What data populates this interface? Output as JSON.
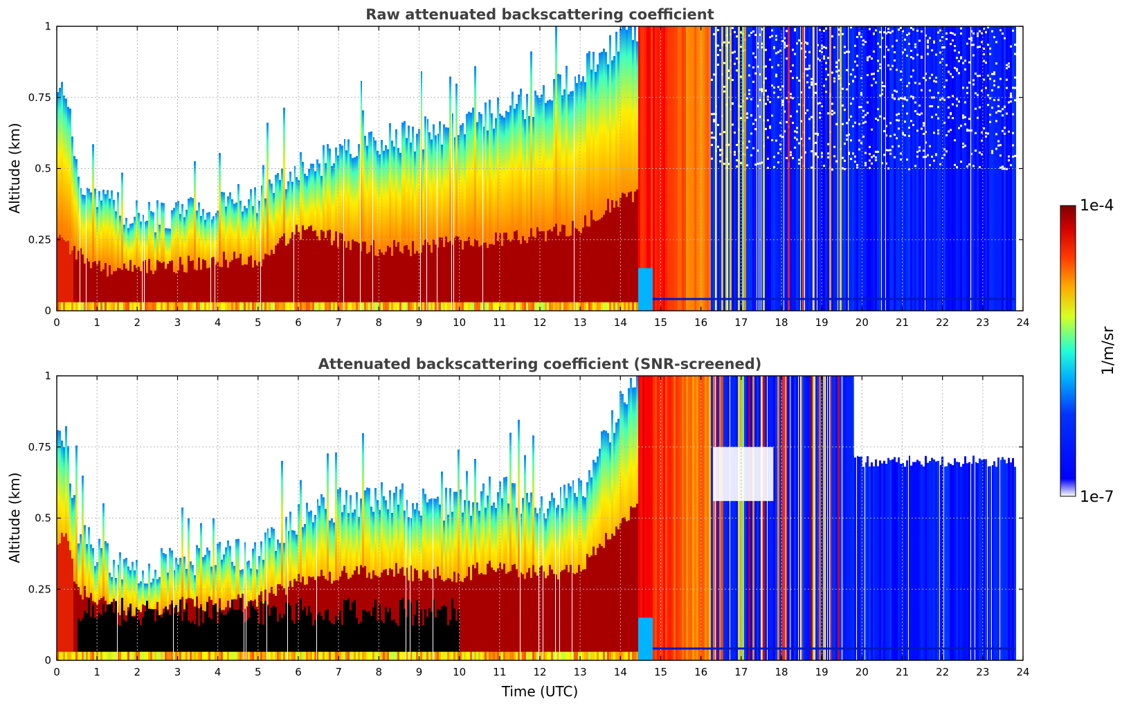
{
  "colors": {
    "title": "#404040",
    "jet_dark_red": "#7f0000",
    "jet_blue": "#0032ff",
    "black_saturation": "#000000"
  },
  "colorbar": {
    "label": "1/m/sr",
    "max_label": "1e-4",
    "min_label": "1e-7",
    "range": [
      1e-07,
      0.0001
    ],
    "colormap": "jet"
  },
  "chart_data": [
    {
      "id": "raw",
      "type": "heatmap",
      "title": "Raw attenuated backscattering coefficient",
      "xlabel": "",
      "ylabel": "Altitude (km)",
      "xlim": [
        0,
        24
      ],
      "ylim": [
        0,
        1
      ],
      "x_ticks": [
        "0",
        "1",
        "2",
        "3",
        "4",
        "5",
        "6",
        "7",
        "8",
        "9",
        "10",
        "11",
        "12",
        "13",
        "14",
        "15",
        "16",
        "17",
        "18",
        "19",
        "20",
        "21",
        "22",
        "23",
        "24"
      ],
      "y_ticks": [
        "0",
        "0.25",
        "0.5",
        "0.75",
        "1"
      ],
      "grid": true,
      "description_series": [
        {
          "name": "boundary_layer_top_km",
          "x": [
            0,
            0.2,
            0.5,
            1,
            2,
            3,
            4,
            5,
            6,
            7,
            8,
            9,
            10,
            11,
            12,
            13,
            14,
            14.4
          ],
          "values": [
            0.75,
            0.8,
            0.45,
            0.4,
            0.32,
            0.35,
            0.38,
            0.4,
            0.5,
            0.55,
            0.6,
            0.62,
            0.65,
            0.7,
            0.75,
            0.85,
            0.95,
            1.0
          ]
        },
        {
          "name": "dense_layer_top_km",
          "x": [
            0,
            1,
            2,
            3,
            4,
            5,
            6,
            7,
            8,
            9,
            10,
            11,
            12,
            13,
            14
          ],
          "values": [
            0.25,
            0.15,
            0.15,
            0.16,
            0.18,
            0.18,
            0.28,
            0.25,
            0.22,
            0.22,
            0.24,
            0.25,
            0.27,
            0.3,
            0.4
          ]
        }
      ],
      "regimes": [
        {
          "from": 0,
          "to": 14.4,
          "state": "aerosol boundary layer (red/yellow), white above"
        },
        {
          "from": 14.4,
          "to": 16.2,
          "state": "saturated red column to 1 km"
        },
        {
          "from": 16.2,
          "to": 23.8,
          "state": "low signal (blue) with intermittent red/yellow plumes up to 19.5"
        }
      ]
    },
    {
      "id": "screened",
      "type": "heatmap",
      "title": "Attenuated backscattering coefficient (SNR-screened)",
      "xlabel": "Time (UTC)",
      "ylabel": "Altitude (km)",
      "xlim": [
        0,
        24
      ],
      "ylim": [
        0,
        1
      ],
      "x_ticks": [
        "0",
        "1",
        "2",
        "3",
        "4",
        "5",
        "6",
        "7",
        "8",
        "9",
        "10",
        "11",
        "12",
        "13",
        "14",
        "15",
        "16",
        "17",
        "18",
        "19",
        "20",
        "21",
        "22",
        "23",
        "24"
      ],
      "y_ticks": [
        "0",
        "0.25",
        "0.5",
        "0.75",
        "1"
      ],
      "grid": true,
      "description_series": [
        {
          "name": "boundary_layer_top_km",
          "x": [
            0,
            0.2,
            0.5,
            1,
            2,
            3,
            4,
            5,
            6,
            7,
            8,
            9,
            10,
            11,
            12,
            13,
            14,
            14.4
          ],
          "values": [
            0.75,
            0.8,
            0.45,
            0.38,
            0.3,
            0.35,
            0.36,
            0.38,
            0.5,
            0.55,
            0.58,
            0.55,
            0.55,
            0.6,
            0.55,
            0.6,
            0.9,
            1.0
          ]
        },
        {
          "name": "blue_layer_top_km_after_20h",
          "x": [
            19.8,
            23.8
          ],
          "values": [
            0.72,
            0.7
          ]
        }
      ],
      "regimes": [
        {
          "from": 0.5,
          "to": 10,
          "state": "black saturation below ~0.2 km"
        },
        {
          "from": 14.4,
          "to": 16.2,
          "state": "saturated red column to 1 km"
        },
        {
          "from": 16.2,
          "to": 19.8,
          "state": "blue to 1 km with gaps, red plumes"
        },
        {
          "from": 19.8,
          "to": 23.8,
          "state": "blue layer up to ~0.7 km"
        }
      ]
    }
  ]
}
